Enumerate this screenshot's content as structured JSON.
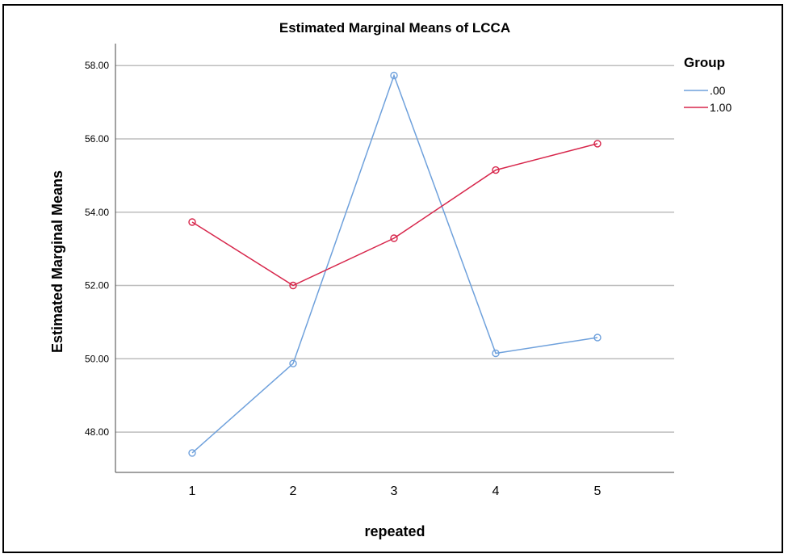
{
  "chart_data": {
    "type": "line",
    "title": "Estimated Marginal Means of LCCA",
    "xlabel": "repeated",
    "ylabel": "Estimated Marginal Means",
    "categories": [
      "1",
      "2",
      "3",
      "4",
      "5"
    ],
    "ylim": [
      46.9,
      58.6
    ],
    "yticks": [
      48,
      50,
      52,
      54,
      56,
      58
    ],
    "ytick_labels": [
      "48.00",
      "50.00",
      "52.00",
      "54.00",
      "56.00",
      "58.00"
    ],
    "grid": "horizontal",
    "legend": {
      "title": "Group",
      "placement": "top-right"
    },
    "series": [
      {
        "name": ".00",
        "color": "#6fa1dc",
        "values": [
          47.43,
          49.87,
          57.73,
          50.15,
          50.58
        ]
      },
      {
        "name": "1.00",
        "color": "#d7264b",
        "values": [
          53.73,
          52.0,
          53.29,
          55.15,
          55.87
        ]
      }
    ]
  }
}
